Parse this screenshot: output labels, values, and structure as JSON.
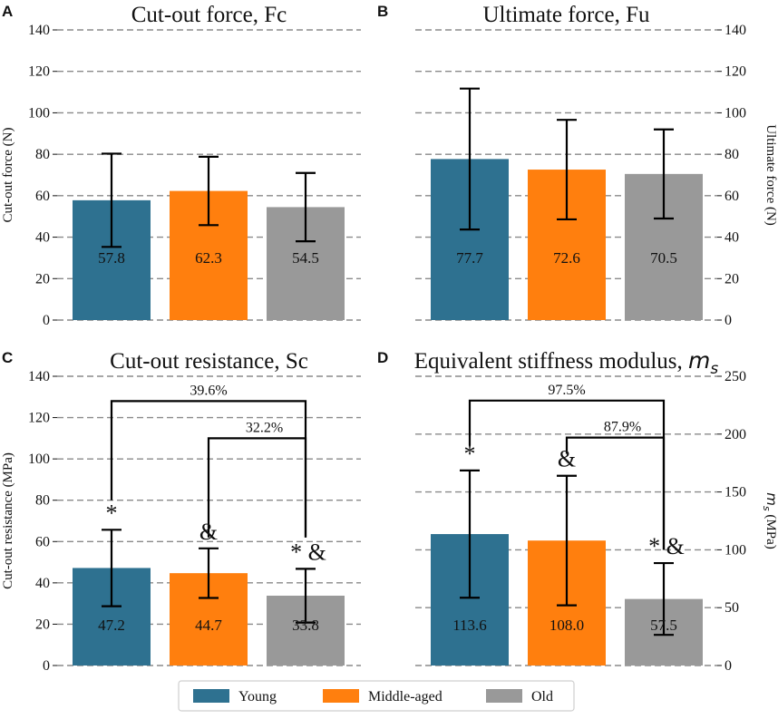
{
  "legend": [
    {
      "label": "Young",
      "color": "#2e7190"
    },
    {
      "label": "Middle-aged",
      "color": "#ff7f0e"
    },
    {
      "label": "Old",
      "color": "#999999"
    }
  ],
  "chart_data": [
    {
      "panel": "A",
      "type": "bar",
      "title": "Cut-out force, Fc",
      "ylabel": "Cut-out force (N)",
      "ylabel_side": "left",
      "ylim": [
        0,
        140
      ],
      "yticks": [
        0,
        20,
        40,
        60,
        80,
        100,
        120,
        140
      ],
      "categories": [
        "Young",
        "Middle-aged",
        "Old"
      ],
      "values": [
        57.8,
        62.3,
        54.5
      ],
      "value_labels": [
        "57.8",
        "62.3",
        "54.5"
      ],
      "errors": [
        22.5,
        16.5,
        16.5
      ],
      "colors": [
        "#2e7190",
        "#ff7f0e",
        "#999999"
      ],
      "significance": [],
      "brackets": []
    },
    {
      "panel": "B",
      "type": "bar",
      "title": "Ultimate force, Fu",
      "ylabel": "Ultimate force (N)",
      "ylabel_side": "right",
      "ylim": [
        0,
        140
      ],
      "yticks": [
        0,
        20,
        40,
        60,
        80,
        100,
        120,
        140
      ],
      "categories": [
        "Young",
        "Middle-aged",
        "Old"
      ],
      "values": [
        77.7,
        72.6,
        70.5
      ],
      "value_labels": [
        "77.7",
        "72.6",
        "70.5"
      ],
      "errors": [
        34,
        24,
        21.5
      ],
      "colors": [
        "#2e7190",
        "#ff7f0e",
        "#999999"
      ],
      "significance": [],
      "brackets": []
    },
    {
      "panel": "C",
      "type": "bar",
      "title": "Cut-out resistance, Sc",
      "ylabel": "Cut-out resistance (MPa)",
      "ylabel_side": "left",
      "ylim": [
        0,
        140
      ],
      "yticks": [
        0,
        20,
        40,
        60,
        80,
        100,
        120,
        140
      ],
      "categories": [
        "Young",
        "Middle-aged",
        "Old"
      ],
      "values": [
        47.2,
        44.7,
        33.8
      ],
      "value_labels": [
        "47.2",
        "44.7",
        "33.8"
      ],
      "errors": [
        18.5,
        12,
        13
      ],
      "colors": [
        "#2e7190",
        "#ff7f0e",
        "#999999"
      ],
      "significance": [
        {
          "bar": 0,
          "text": "*"
        },
        {
          "bar": 1,
          "text": "&"
        },
        {
          "bar": 2,
          "text": "*  &"
        }
      ],
      "brackets": [
        {
          "from": 0,
          "to": 2,
          "level": 128,
          "drop_from": 80,
          "drop_to": 62,
          "label": "39.6%"
        },
        {
          "from": 1,
          "to": 2,
          "level": 110,
          "drop_from": 62,
          "drop_to": 62,
          "label": "32.2%"
        }
      ]
    },
    {
      "panel": "D",
      "type": "bar",
      "title": "Equivalent stiffness modulus, ",
      "title_symbol": "m",
      "title_sub": "s",
      "ylabel": "(MPa)",
      "ylabel_symbol": "m",
      "ylabel_sub": "s",
      "ylabel_side": "right",
      "ylim": [
        0,
        250
      ],
      "yticks": [
        0,
        50,
        100,
        150,
        200,
        250
      ],
      "categories": [
        "Young",
        "Middle-aged",
        "Old"
      ],
      "values": [
        113.6,
        108.0,
        57.5
      ],
      "value_labels": [
        "113.6",
        "108.0",
        "57.5"
      ],
      "errors": [
        55,
        56,
        31
      ],
      "colors": [
        "#2e7190",
        "#ff7f0e",
        "#999999"
      ],
      "significance": [
        {
          "bar": 0,
          "text": "*"
        },
        {
          "bar": 1,
          "text": "&"
        },
        {
          "bar": 2,
          "text": "*  &"
        }
      ],
      "brackets": [
        {
          "from": 0,
          "to": 2,
          "level": 229,
          "drop_from": 190,
          "drop_to": 100,
          "label": "97.5%"
        },
        {
          "from": 1,
          "to": 2,
          "level": 197,
          "drop_from": 183,
          "drop_to": 100,
          "label": "87.9%"
        }
      ]
    }
  ]
}
